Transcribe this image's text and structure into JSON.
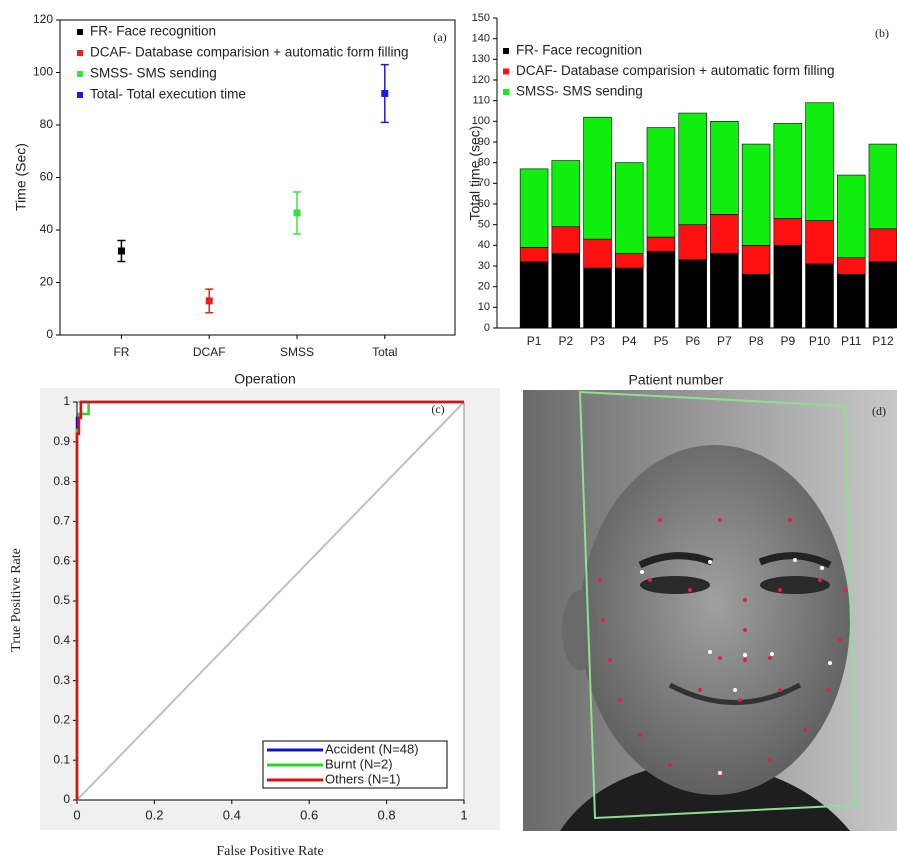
{
  "chart_data": [
    {
      "type": "errorbar",
      "annotation": "(a)",
      "x_label": "Operation",
      "y_label": "Time (Sec)",
      "categories": [
        "FR",
        "DCAF",
        "SMSS",
        "Total"
      ],
      "series": [
        {
          "name": "FR- Face recognition",
          "color": "#000000",
          "values": [
            32,
            null,
            null,
            null
          ],
          "errors": [
            4,
            null,
            null,
            null
          ]
        },
        {
          "name": "DCAF- Database comparision + automatic form filling",
          "color": "#e8201c",
          "values": [
            null,
            13,
            null,
            null
          ],
          "errors": [
            null,
            4.5,
            null,
            null
          ]
        },
        {
          "name": "SMSS- SMS sending",
          "color": "#3ee03e",
          "values": [
            null,
            null,
            46.5,
            null
          ],
          "errors": [
            null,
            null,
            8,
            null
          ]
        },
        {
          "name": "Total- Total execution time",
          "color": "#1c1ce0",
          "values": [
            null,
            null,
            null,
            92
          ],
          "errors": [
            null,
            null,
            null,
            11
          ]
        }
      ],
      "ylim": [
        0,
        120
      ],
      "yticks": [
        0,
        20,
        40,
        60,
        80,
        100,
        120
      ],
      "grid": false,
      "legend": "upper-left"
    },
    {
      "type": "stacked_bar",
      "annotation": "(b)",
      "x_label": "Patient number",
      "y_label": "Total time (sec)",
      "categories": [
        "P1",
        "P2",
        "P3",
        "P4",
        "P5",
        "P6",
        "P7",
        "P8",
        "P9",
        "P10",
        "P11",
        "P12"
      ],
      "series": [
        {
          "name": "FR- Face recognition",
          "color": "#000000",
          "values": [
            32,
            36,
            29,
            29,
            37,
            33,
            36,
            26,
            40,
            31,
            26,
            32
          ]
        },
        {
          "name": "DCAF- Database comparision + automatic form filling",
          "color": "#ff1010",
          "values": [
            7,
            13,
            14,
            7,
            7,
            17,
            19,
            14,
            13,
            21,
            8,
            16
          ]
        },
        {
          "name": "SMSS- SMS sending",
          "color": "#10ee10",
          "values": [
            38,
            32,
            59,
            44,
            53,
            54,
            45,
            49,
            46,
            57,
            40,
            41
          ]
        }
      ],
      "ylim": [
        0,
        150
      ],
      "yticks": [
        0,
        10,
        20,
        30,
        40,
        50,
        60,
        70,
        80,
        90,
        100,
        110,
        120,
        130,
        140,
        150
      ],
      "grid": false,
      "legend": "upper-left"
    },
    {
      "type": "line",
      "annotation": "(c)",
      "x_label": "False Positive Rate",
      "y_label": "True Positive Rate",
      "series": [
        {
          "name": "Accident (N=48)",
          "color": "#1010d0",
          "x": [
            0,
            0,
            0.01,
            0.01,
            1
          ],
          "values": [
            0,
            0.96,
            0.96,
            1,
            1
          ]
        },
        {
          "name": "Burnt (N=2)",
          "color": "#30d030",
          "x": [
            0,
            0,
            0.005,
            0.005,
            0.03,
            0.03,
            1
          ],
          "values": [
            0,
            0.93,
            0.93,
            0.97,
            0.97,
            1,
            1
          ]
        },
        {
          "name": "Others (N=1)",
          "color": "#e01010",
          "x": [
            0,
            0,
            0.005,
            0.005,
            0.01,
            0.01,
            1
          ],
          "values": [
            0,
            0.92,
            0.92,
            0.96,
            0.96,
            1,
            1
          ]
        }
      ],
      "xlim": [
        0,
        1
      ],
      "xticks": [
        0,
        0.2,
        0.4,
        0.6,
        0.8,
        1
      ],
      "ylim": [
        0,
        1
      ],
      "yticks": [
        0,
        0.1,
        0.2,
        0.3,
        0.4,
        0.5,
        0.6,
        0.7,
        0.8,
        0.9,
        1
      ],
      "grid": false,
      "legend": "lower-right"
    }
  ],
  "panel_d": {
    "label": "(d)"
  }
}
